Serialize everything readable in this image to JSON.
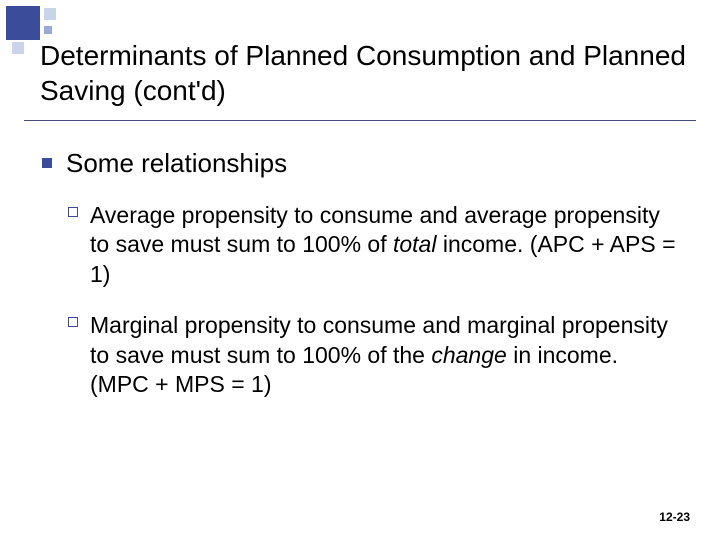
{
  "title": "Determinants of Planned Consumption and Planned Saving (cont'd)",
  "l1": "Some relationships",
  "p1a": "Average",
  "p1b": " propensity to consume and average propensity to save must sum to 100% of ",
  "p1c": "total",
  "p1d": " income. (APC + APS = 1)",
  "p2a": "Marginal",
  "p2b": " propensity to consume and marginal propensity to save must sum to 100% of the ",
  "p2c": "change",
  "p2d": " in income. (MPC + MPS = 1)",
  "footer": "12-23"
}
